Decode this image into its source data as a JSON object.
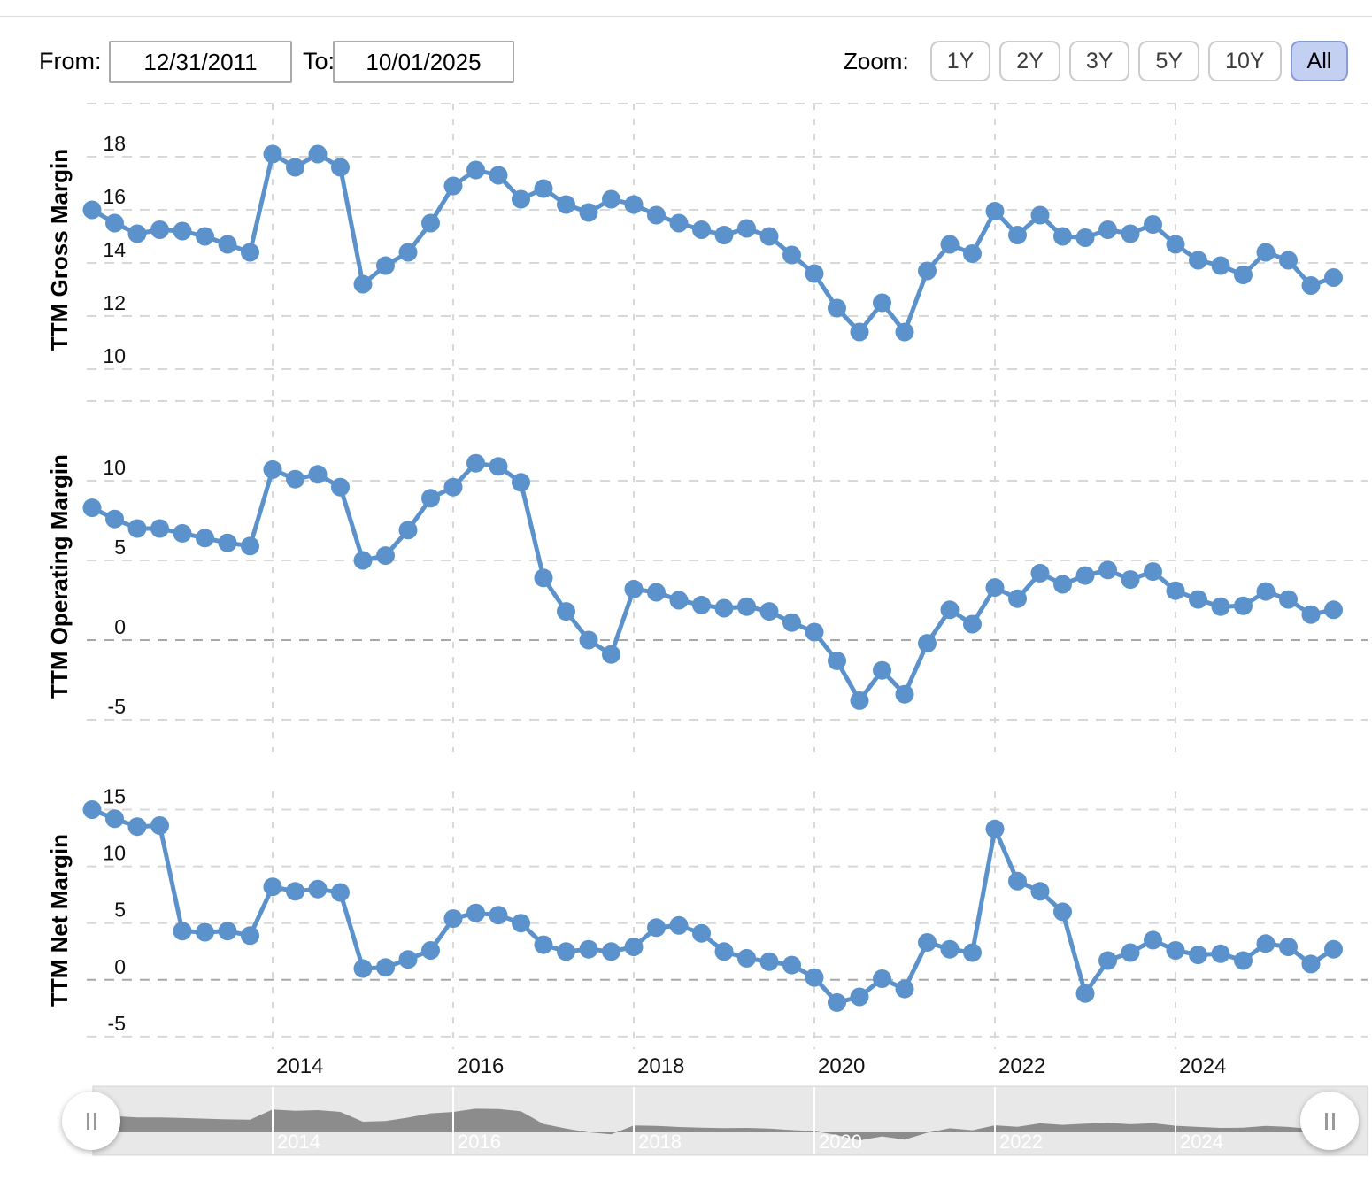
{
  "header": {
    "from_label": "From:",
    "from_value": "12/31/2011",
    "to_label": "To:",
    "to_value": "10/01/2025",
    "zoom_label": "Zoom:",
    "zoom_buttons": [
      "1Y",
      "2Y",
      "3Y",
      "5Y",
      "10Y",
      "All"
    ],
    "zoom_selected": "All"
  },
  "colors": {
    "line": "#5b92cc",
    "grid": "#d8d8d8",
    "grid_zero": "#a8a8a8",
    "axis_text": "#111111",
    "nav_bg": "#e8e8e8",
    "nav_border": "#d5d5d5",
    "nav_fill": "#8c8c8c",
    "selected_zoom_bg": "#c4d0f2",
    "selected_zoom_border": "#8b99d2"
  },
  "x_axis": {
    "year_labels": [
      "2014",
      "2016",
      "2018",
      "2020",
      "2022",
      "2024"
    ],
    "year_point_indices": [
      8,
      16,
      24,
      32,
      40,
      48
    ]
  },
  "chart_data": [
    {
      "type": "line",
      "title": "TTM Gross Margin",
      "ylabel": "TTM Gross Margin",
      "yticks": [
        18,
        16,
        14,
        12,
        10
      ],
      "grid_extra": [
        20
      ],
      "ylim": [
        9,
        20
      ],
      "values": [
        16.0,
        15.5,
        15.1,
        15.25,
        15.2,
        15.0,
        14.7,
        14.4,
        18.1,
        17.6,
        18.1,
        17.6,
        13.2,
        13.9,
        14.4,
        15.5,
        16.9,
        17.5,
        17.3,
        16.4,
        16.8,
        16.2,
        15.9,
        16.4,
        16.2,
        15.8,
        15.5,
        15.25,
        15.05,
        15.3,
        15.0,
        14.3,
        13.6,
        12.3,
        11.4,
        12.5,
        11.4,
        13.7,
        14.7,
        14.35,
        15.95,
        15.05,
        15.8,
        15.0,
        14.95,
        15.25,
        15.1,
        15.45,
        14.7,
        14.1,
        13.9,
        13.55,
        14.4,
        14.1,
        13.15,
        13.45
      ]
    },
    {
      "type": "line",
      "title": "TTM Operating Margin",
      "ylabel": "TTM Operating Margin",
      "yticks": [
        10,
        5,
        0,
        -5
      ],
      "grid_extra": [
        15
      ],
      "ylim": [
        -7,
        15
      ],
      "values": [
        8.3,
        7.6,
        7.0,
        7.0,
        6.7,
        6.4,
        6.1,
        5.9,
        10.7,
        10.1,
        10.4,
        9.6,
        5.0,
        5.3,
        6.9,
        8.9,
        9.6,
        11.1,
        10.9,
        9.9,
        3.9,
        1.8,
        0.0,
        -0.9,
        3.2,
        3.0,
        2.5,
        2.2,
        2.0,
        2.1,
        1.8,
        1.1,
        0.5,
        -1.3,
        -3.8,
        -1.9,
        -3.4,
        -0.2,
        1.9,
        1.0,
        3.3,
        2.6,
        4.2,
        3.5,
        4.05,
        4.4,
        3.8,
        4.3,
        3.1,
        2.55,
        2.1,
        2.15,
        3.05,
        2.55,
        1.6,
        1.9
      ]
    },
    {
      "type": "line",
      "title": "TTM Net Margin",
      "ylabel": "TTM Net Margin",
      "yticks": [
        15,
        10,
        5,
        0,
        -5
      ],
      "grid_extra": [],
      "ylim": [
        -6.1,
        16.6
      ],
      "values": [
        15.0,
        14.2,
        13.5,
        13.6,
        4.3,
        4.2,
        4.3,
        3.9,
        8.2,
        7.8,
        8.0,
        7.7,
        1.0,
        1.1,
        1.8,
        2.6,
        5.4,
        5.9,
        5.7,
        5.0,
        3.1,
        2.5,
        2.7,
        2.5,
        2.9,
        4.6,
        4.8,
        4.1,
        2.5,
        1.9,
        1.6,
        1.3,
        0.2,
        -2.0,
        -1.5,
        0.1,
        -0.8,
        3.3,
        2.7,
        2.4,
        13.3,
        8.7,
        7.8,
        6.0,
        -1.2,
        1.7,
        2.4,
        3.5,
        2.6,
        2.2,
        2.3,
        1.7,
        3.2,
        2.9,
        1.4,
        2.7
      ]
    }
  ],
  "navigator": {
    "year_labels": [
      "2014",
      "2016",
      "2018",
      "2020",
      "2022",
      "2024"
    ],
    "series_source": "TTM Operating Margin",
    "values": [
      8.3,
      7.6,
      7.0,
      7.0,
      6.7,
      6.4,
      6.1,
      5.9,
      10.7,
      10.1,
      10.4,
      9.6,
      5.0,
      5.3,
      6.9,
      8.9,
      9.6,
      11.1,
      10.9,
      9.9,
      3.9,
      1.8,
      0.0,
      -0.9,
      3.2,
      3.0,
      2.5,
      2.2,
      2.0,
      2.1,
      1.8,
      1.1,
      0.5,
      -1.3,
      -3.8,
      -1.9,
      -3.4,
      -0.2,
      1.9,
      1.0,
      3.3,
      2.6,
      4.2,
      3.5,
      4.05,
      4.4,
      3.8,
      4.3,
      3.1,
      2.55,
      2.1,
      2.15,
      3.05,
      2.55,
      1.6,
      1.9
    ]
  }
}
